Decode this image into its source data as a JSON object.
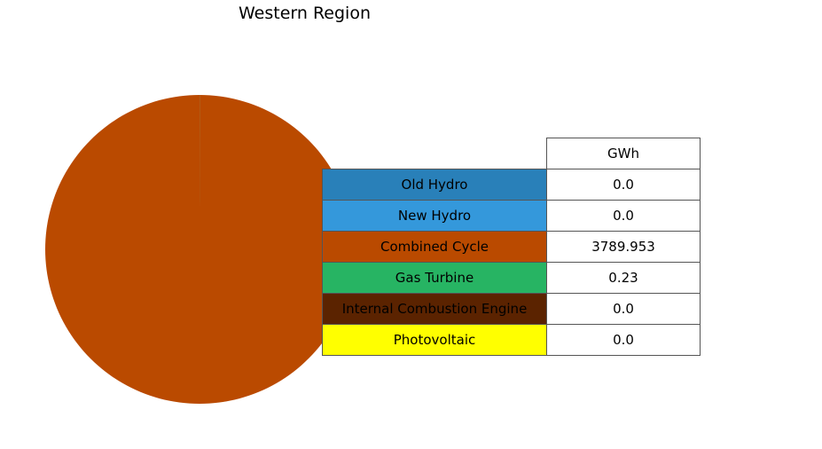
{
  "chart_data": {
    "type": "pie",
    "title": "Western Region",
    "column_header": "GWh",
    "slices": [
      {
        "label": "Old Hydro",
        "value": "0.0",
        "color": "#2980b9"
      },
      {
        "label": "New Hydro",
        "value": "0.0",
        "color": "#3498db"
      },
      {
        "label": "Combined Cycle",
        "value": "3789.953",
        "color": "#ba4a00"
      },
      {
        "label": "Gas Turbine",
        "value": "0.23",
        "color": "#27b463"
      },
      {
        "label": "Internal Combustion Engine",
        "value": "0.0",
        "color": "#5b2300"
      },
      {
        "label": "Photovoltaic",
        "value": "0.0",
        "color": "#ffff00"
      }
    ]
  }
}
